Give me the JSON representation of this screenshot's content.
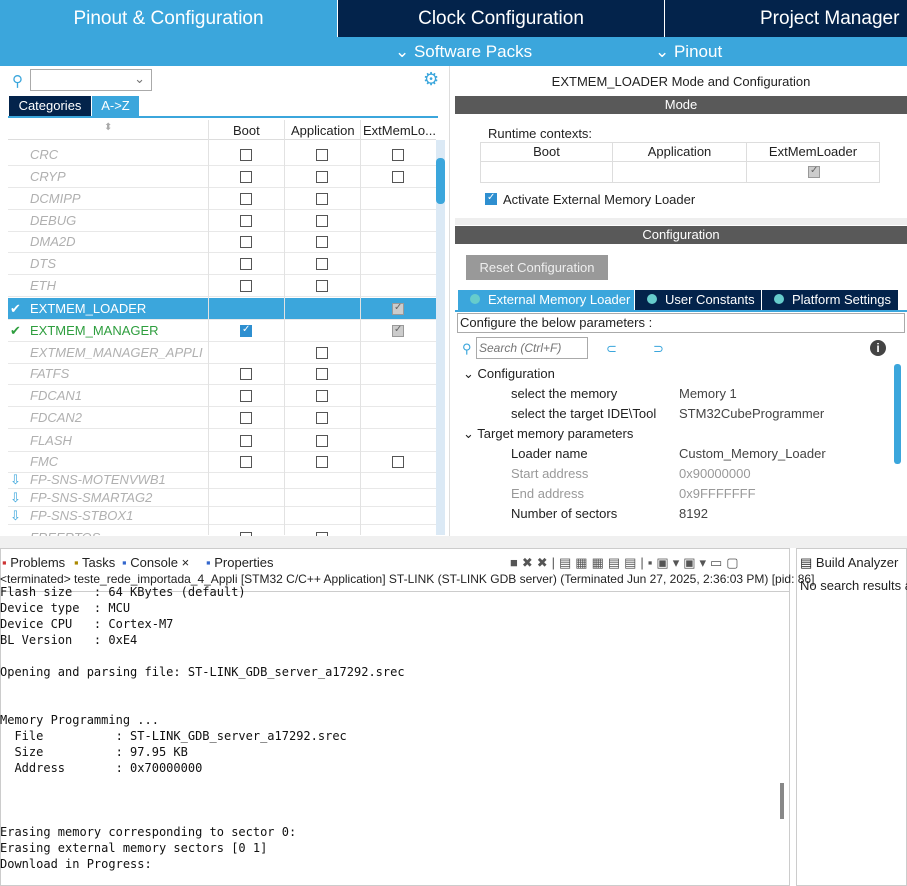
{
  "top_tabs": [
    "Pinout & Configuration",
    "Clock Configuration",
    "Project Manager"
  ],
  "sub_menu": [
    "Software Packs",
    "Pinout"
  ],
  "left": {
    "tabs": [
      "Categories",
      "A->Z"
    ],
    "columns": [
      "Boot",
      "Application",
      "ExtMemLo..."
    ],
    "rows": [
      {
        "name": "CRC",
        "boot": "off",
        "app": "off",
        "ext": "off"
      },
      {
        "name": "CRYP",
        "boot": "off",
        "app": "off",
        "ext": "off"
      },
      {
        "name": "DCMIPP",
        "boot": "off",
        "app": "off"
      },
      {
        "name": "DEBUG",
        "boot": "off",
        "app": "off"
      },
      {
        "name": "DMA2D",
        "boot": "off",
        "app": "off"
      },
      {
        "name": "DTS",
        "boot": "off",
        "app": "off"
      },
      {
        "name": "ETH",
        "boot": "off",
        "app": "off"
      },
      {
        "name": "EXTMEM_LOADER",
        "ext": "gray",
        "status": "selected"
      },
      {
        "name": "EXTMEM_MANAGER",
        "boot": "on",
        "ext": "gray",
        "status": "enabled"
      },
      {
        "name": "EXTMEM_MANAGER_APPLI",
        "app": "off"
      },
      {
        "name": "FATFS",
        "boot": "off",
        "app": "off"
      },
      {
        "name": "FDCAN1",
        "boot": "off",
        "app": "off"
      },
      {
        "name": "FDCAN2",
        "boot": "off",
        "app": "off"
      },
      {
        "name": "FLASH",
        "boot": "off",
        "app": "off"
      },
      {
        "name": "FMC",
        "boot": "off",
        "app": "off",
        "ext": "off"
      },
      {
        "name": "FP-SNS-MOTENVWB1",
        "status": "pack"
      },
      {
        "name": "FP-SNS-SMARTAG2",
        "status": "pack"
      },
      {
        "name": "FP-SNS-STBOX1",
        "status": "pack"
      },
      {
        "name": "FREERTOS",
        "boot": "off",
        "app": "off"
      }
    ]
  },
  "right": {
    "title": "EXTMEM_LOADER Mode and Configuration",
    "mode_header": "Mode",
    "runtime_label": "Runtime contexts:",
    "runtime_cols": [
      "Boot",
      "Application",
      "ExtMemLoader"
    ],
    "activate_label": "Activate External Memory Loader",
    "config_header": "Configuration",
    "reset_button": "Reset Configuration",
    "tabs": [
      "External Memory Loader",
      "User Constants",
      "Platform Settings"
    ],
    "configure_label": "Configure the below parameters :",
    "search_placeholder": "Search (Ctrl+F)",
    "groups": [
      {
        "label": "Configuration",
        "params": [
          [
            "select the memory",
            "Memory 1"
          ],
          [
            "select the target IDE\\Tool",
            "STM32CubeProgrammer"
          ]
        ]
      },
      {
        "label": "Target memory parameters",
        "params": [
          [
            "Loader name",
            "Custom_Memory_Loader"
          ],
          [
            "Start address",
            "0x90000000"
          ],
          [
            "End address",
            "0x9FFFFFFF"
          ],
          [
            "Number of sectors",
            "8192"
          ]
        ]
      }
    ]
  },
  "console": {
    "tabs": [
      "Problems",
      "Tasks",
      "Console",
      "Properties"
    ],
    "status": "<terminated> teste_rede_importada_4_Appli [STM32 C/C++ Application] ST-LINK (ST-LINK GDB server) (Terminated Jun 27, 2025, 2:36:03 PM) [pid: 86]",
    "text": "Flash size   : 64 KBytes (default)\nDevice type  : MCU\nDevice CPU   : Cortex-M7\nBL Version   : 0xE4\n\nOpening and parsing file: ST-LINK_GDB_server_a17292.srec\n\n\nMemory Programming ...\n  File          : ST-LINK_GDB_server_a17292.srec\n  Size          : 97.95 KB\n  Address       : 0x70000000\n\n\n\nErasing memory corresponding to sector 0:\nErasing external memory sectors [0 1]\nDownload in Progress:"
  },
  "build_analyzer": {
    "tab": "Build Analyzer",
    "message": "No search results ava"
  },
  "colors": {
    "accent": "#3ba6dc",
    "navy": "#03234b",
    "enabled": "#2e9e3e"
  }
}
